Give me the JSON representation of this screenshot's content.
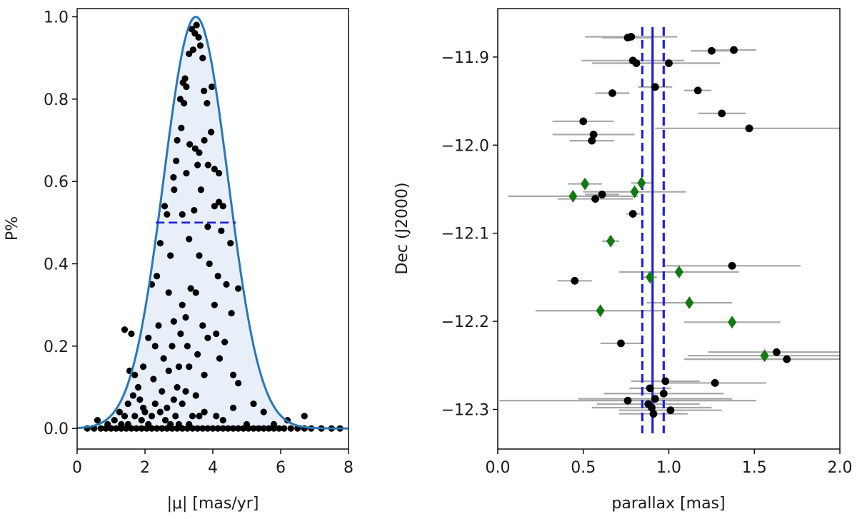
{
  "chart_data": [
    {
      "type": "scatter",
      "title": "",
      "xlabel": "|μ| [mas/yr]",
      "ylabel": "P%",
      "xlim": [
        0,
        8
      ],
      "ylim": [
        -0.05,
        1.02
      ],
      "xticks": [
        0,
        2,
        4,
        6,
        8
      ],
      "xtick_labels": [
        "0",
        "2",
        "4",
        "6",
        "8"
      ],
      "yticks": [
        0.0,
        0.2,
        0.4,
        0.6,
        0.8,
        1.0
      ],
      "ytick_labels": [
        "0.0",
        "0.2",
        "0.4",
        "0.6",
        "0.8",
        "1.0"
      ],
      "grid": false,
      "curve": {
        "type": "gaussian",
        "mu": 3.5,
        "sigma": 0.95,
        "peak": 1.0,
        "line_color": "#2878b5",
        "fill_color": "#e8eff8"
      },
      "half_max_line": {
        "y": 0.5,
        "x": [
          2.32,
          4.68
        ],
        "color": "#1f1fdd"
      },
      "points": [
        [
          3.52,
          0.98
        ],
        [
          3.38,
          0.97
        ],
        [
          3.47,
          0.96
        ],
        [
          3.58,
          0.95
        ],
        [
          3.63,
          0.93
        ],
        [
          3.42,
          0.92
        ],
        [
          3.3,
          0.91
        ],
        [
          3.7,
          0.9
        ],
        [
          3.18,
          0.85
        ],
        [
          3.12,
          0.84
        ],
        [
          3.22,
          0.83
        ],
        [
          3.74,
          0.82
        ],
        [
          3.97,
          0.83
        ],
        [
          3.83,
          0.79
        ],
        [
          3.04,
          0.8
        ],
        [
          3.15,
          0.79
        ],
        [
          3.07,
          0.73
        ],
        [
          3.95,
          0.72
        ],
        [
          3.75,
          0.7
        ],
        [
          2.95,
          0.7
        ],
        [
          3.32,
          0.69
        ],
        [
          3.48,
          0.68
        ],
        [
          3.6,
          0.67
        ],
        [
          2.92,
          0.65
        ],
        [
          3.86,
          0.64
        ],
        [
          3.55,
          0.64
        ],
        [
          3.22,
          0.62
        ],
        [
          2.84,
          0.61
        ],
        [
          4.05,
          0.63
        ],
        [
          4.18,
          0.62
        ],
        [
          3.65,
          0.58
        ],
        [
          2.86,
          0.58
        ],
        [
          4.18,
          0.55
        ],
        [
          2.58,
          0.54
        ],
        [
          4.05,
          0.54
        ],
        [
          3.1,
          0.52
        ],
        [
          3.45,
          0.53
        ],
        [
          4.3,
          0.54
        ],
        [
          2.65,
          0.52
        ],
        [
          3.85,
          0.49
        ],
        [
          4.25,
          0.48
        ],
        [
          3.3,
          0.46
        ],
        [
          4.52,
          0.45
        ],
        [
          2.45,
          0.45
        ],
        [
          2.75,
          0.42
        ],
        [
          3.9,
          0.4
        ],
        [
          3.6,
          0.42
        ],
        [
          4.15,
          0.37
        ],
        [
          2.35,
          0.37
        ],
        [
          2.2,
          0.35
        ],
        [
          3.35,
          0.34
        ],
        [
          2.7,
          0.33
        ],
        [
          3.5,
          0.33
        ],
        [
          4.4,
          0.35
        ],
        [
          4.05,
          0.3
        ],
        [
          4.75,
          0.34
        ],
        [
          3.1,
          0.3
        ],
        [
          4.55,
          0.28
        ],
        [
          3.2,
          0.27
        ],
        [
          3.7,
          0.25
        ],
        [
          2.85,
          0.26
        ],
        [
          2.4,
          0.25
        ],
        [
          1.4,
          0.24
        ],
        [
          1.6,
          0.23
        ],
        [
          3.05,
          0.23
        ],
        [
          4.1,
          0.23
        ],
        [
          2.1,
          0.22
        ],
        [
          3.85,
          0.22
        ],
        [
          3.25,
          0.2
        ],
        [
          2.8,
          0.2
        ],
        [
          2.3,
          0.2
        ],
        [
          4.35,
          0.21
        ],
        [
          2.55,
          0.17
        ],
        [
          3.55,
          0.18
        ],
        [
          4.2,
          0.17
        ],
        [
          3.3,
          0.15
        ],
        [
          1.95,
          0.15
        ],
        [
          3.0,
          0.15
        ],
        [
          2.7,
          0.14
        ],
        [
          1.7,
          0.13
        ],
        [
          1.55,
          0.14
        ],
        [
          3.75,
          0.13
        ],
        [
          4.6,
          0.13
        ],
        [
          4.75,
          0.11
        ],
        [
          2.25,
          0.12
        ],
        [
          1.8,
          0.1
        ],
        [
          2.95,
          0.1
        ],
        [
          2.5,
          0.09
        ],
        [
          3.2,
          0.09
        ],
        [
          1.65,
          0.08
        ],
        [
          1.85,
          0.07
        ],
        [
          3.5,
          0.08
        ],
        [
          2.85,
          0.07
        ],
        [
          1.5,
          0.06
        ],
        [
          1.95,
          0.05
        ],
        [
          2.3,
          0.06
        ],
        [
          2.65,
          0.05
        ],
        [
          3.1,
          0.06
        ],
        [
          3.75,
          0.04
        ],
        [
          4.6,
          0.05
        ],
        [
          5.2,
          0.06
        ],
        [
          5.5,
          0.04
        ],
        [
          1.25,
          0.04
        ],
        [
          2.0,
          0.04
        ],
        [
          2.45,
          0.04
        ],
        [
          3.4,
          0.03
        ],
        [
          4.1,
          0.03
        ],
        [
          1.4,
          0.03
        ],
        [
          1.7,
          0.03
        ],
        [
          2.2,
          0.03
        ],
        [
          2.9,
          0.03
        ],
        [
          3.6,
          0.03
        ],
        [
          1.1,
          0.02
        ],
        [
          1.9,
          0.02
        ],
        [
          0.6,
          0.02
        ],
        [
          2.6,
          0.02
        ],
        [
          4.3,
          0.02
        ],
        [
          1.5,
          0.01
        ],
        [
          2.1,
          0.01
        ],
        [
          3.0,
          0.01
        ],
        [
          0.9,
          0.01
        ],
        [
          2.75,
          0.01
        ],
        [
          3.3,
          0.01
        ],
        [
          5.0,
          0.01
        ],
        [
          6.2,
          0.02
        ],
        [
          6.7,
          0.03
        ],
        [
          5.8,
          0.01
        ],
        [
          1.3,
          0.01
        ],
        [
          0.3,
          0.0
        ],
        [
          0.5,
          0.0
        ],
        [
          0.7,
          0.0
        ],
        [
          0.85,
          0.0
        ],
        [
          1.0,
          0.0
        ],
        [
          1.15,
          0.0
        ],
        [
          1.3,
          0.0
        ],
        [
          1.45,
          0.0
        ],
        [
          1.6,
          0.0
        ],
        [
          1.75,
          0.0
        ],
        [
          1.9,
          0.0
        ],
        [
          2.05,
          0.0
        ],
        [
          2.2,
          0.0
        ],
        [
          2.35,
          0.0
        ],
        [
          2.5,
          0.0
        ],
        [
          2.65,
          0.0
        ],
        [
          2.8,
          0.0
        ],
        [
          2.95,
          0.0
        ],
        [
          3.1,
          0.0
        ],
        [
          3.25,
          0.0
        ],
        [
          3.4,
          0.0
        ],
        [
          3.55,
          0.0
        ],
        [
          3.7,
          0.0
        ],
        [
          3.85,
          0.0
        ],
        [
          4.0,
          0.0
        ],
        [
          4.15,
          0.0
        ],
        [
          4.3,
          0.0
        ],
        [
          4.45,
          0.0
        ],
        [
          4.6,
          0.0
        ],
        [
          4.75,
          0.0
        ],
        [
          4.9,
          0.0
        ],
        [
          5.05,
          0.0
        ],
        [
          5.2,
          0.0
        ],
        [
          5.35,
          0.0
        ],
        [
          5.5,
          0.0
        ],
        [
          5.65,
          0.0
        ],
        [
          5.8,
          0.0
        ],
        [
          5.95,
          0.0
        ],
        [
          6.1,
          0.0
        ],
        [
          6.3,
          0.0
        ],
        [
          6.5,
          0.0
        ],
        [
          6.7,
          0.0
        ],
        [
          6.9,
          0.0
        ],
        [
          7.2,
          0.0
        ],
        [
          7.5,
          0.0
        ],
        [
          7.75,
          0.0
        ]
      ]
    },
    {
      "type": "scatter",
      "title": "",
      "xlabel": "parallax [mas]",
      "ylabel": "Dec (J2000)",
      "xlim": [
        0.0,
        2.0
      ],
      "ylim": [
        -12.345,
        -11.845
      ],
      "xticks": [
        0.0,
        0.5,
        1.0,
        1.5,
        2.0
      ],
      "xtick_labels": [
        "0.0",
        "0.5",
        "1.0",
        "1.5",
        "2.0"
      ],
      "yticks": [
        -11.9,
        -12.0,
        -12.1,
        -12.2,
        -12.3
      ],
      "ytick_labels": [
        "−11.9",
        "−12.0",
        "−12.1",
        "−12.2",
        "−12.3"
      ],
      "grid": false,
      "vlines": [
        {
          "x": 0.905,
          "style": "solid",
          "color": "#1f1fdd"
        },
        {
          "x": 0.845,
          "style": "dashed",
          "color": "#1f1fdd"
        },
        {
          "x": 0.97,
          "style": "dashed",
          "color": "#1f1fdd"
        }
      ],
      "errorbar_color": "#a8a8a8",
      "series": [
        {
          "name": "circles",
          "marker": "circle",
          "color": "#000000",
          "points": [
            {
              "x": 0.76,
              "y": -11.878,
              "xerr": 0.15
            },
            {
              "x": 0.78,
              "y": -11.877,
              "xerr": 0.27
            },
            {
              "x": 1.25,
              "y": -11.893,
              "xerr": 0.12
            },
            {
              "x": 1.38,
              "y": -11.892,
              "xerr": 0.13
            },
            {
              "x": 0.79,
              "y": -11.904,
              "xerr": 0.3
            },
            {
              "x": 0.81,
              "y": -11.907,
              "xerr": 0.26
            },
            {
              "x": 1.0,
              "y": -11.907,
              "xerr": 0.3
            },
            {
              "x": 0.92,
              "y": -11.934,
              "xerr": 0.1
            },
            {
              "x": 1.17,
              "y": -11.938,
              "xerr": 0.08
            },
            {
              "x": 0.67,
              "y": -11.941,
              "xerr": 0.1
            },
            {
              "x": 1.31,
              "y": -11.964,
              "xerr": 0.14
            },
            {
              "x": 0.5,
              "y": -11.973,
              "xerr": 0.18
            },
            {
              "x": 1.47,
              "y": -11.981,
              "xerr": 0.55
            },
            {
              "x": 0.56,
              "y": -11.988,
              "xerr": 0.24
            },
            {
              "x": 0.55,
              "y": -11.995,
              "xerr": 0.13
            },
            {
              "x": 0.61,
              "y": -12.056,
              "xerr": 0.1
            },
            {
              "x": 0.57,
              "y": -12.061,
              "xerr": 0.22
            },
            {
              "x": 0.79,
              "y": -12.078,
              "xerr": 0.04
            },
            {
              "x": 1.37,
              "y": -12.137,
              "xerr": 0.4
            },
            {
              "x": 0.45,
              "y": -12.154,
              "xerr": 0.1
            },
            {
              "x": 0.72,
              "y": -12.225,
              "xerr": 0.12
            },
            {
              "x": 1.63,
              "y": -12.235,
              "xerr": 0.4
            },
            {
              "x": 1.69,
              "y": -12.243,
              "xerr": 0.6
            },
            {
              "x": 0.98,
              "y": -12.268,
              "xerr": 0.2
            },
            {
              "x": 1.27,
              "y": -12.27,
              "xerr": 0.3
            },
            {
              "x": 0.89,
              "y": -12.276,
              "xerr": 0.12
            },
            {
              "x": 0.97,
              "y": -12.282,
              "xerr": 0.35
            },
            {
              "x": 0.92,
              "y": -12.288,
              "xerr": 0.45
            },
            {
              "x": 0.76,
              "y": -12.29,
              "xerr": 0.75
            },
            {
              "x": 0.88,
              "y": -12.294,
              "xerr": 0.3
            },
            {
              "x": 0.9,
              "y": -12.298,
              "xerr": 0.35
            },
            {
              "x": 1.01,
              "y": -12.301,
              "xerr": 0.3
            },
            {
              "x": 0.91,
              "y": -12.305,
              "xerr": 0.2
            }
          ]
        },
        {
          "name": "diamonds",
          "marker": "diamond",
          "color": "#117a11",
          "points": [
            {
              "x": 0.51,
              "y": -12.044,
              "xerr": 0.1
            },
            {
              "x": 0.84,
              "y": -12.043,
              "xerr": 0.06
            },
            {
              "x": 0.8,
              "y": -12.053,
              "xerr": 0.3
            },
            {
              "x": 0.44,
              "y": -12.058,
              "xerr": 0.38
            },
            {
              "x": 0.66,
              "y": -12.109,
              "xerr": 0.05
            },
            {
              "x": 1.06,
              "y": -12.144,
              "xerr": 0.35
            },
            {
              "x": 0.89,
              "y": -12.15,
              "xerr": 0.04
            },
            {
              "x": 1.12,
              "y": -12.179,
              "xerr": 0.25
            },
            {
              "x": 0.6,
              "y": -12.188,
              "xerr": 0.38
            },
            {
              "x": 1.37,
              "y": -12.201,
              "xerr": 0.28
            },
            {
              "x": 1.56,
              "y": -12.239,
              "xerr": 0.45
            }
          ]
        }
      ]
    }
  ]
}
